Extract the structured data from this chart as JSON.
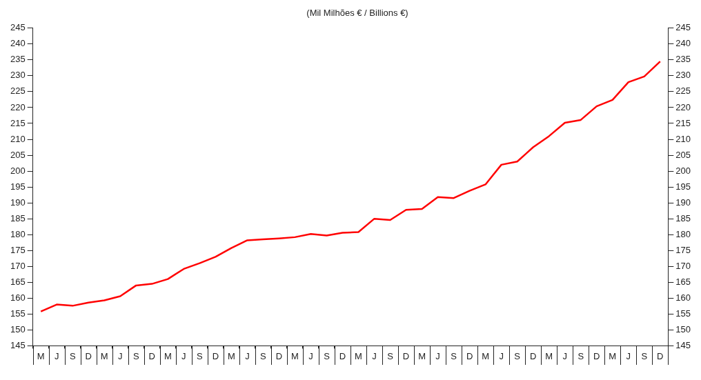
{
  "chart_data": {
    "type": "line",
    "title": "(Mil Milhões € / Billions €)",
    "categories": [
      "M",
      "J",
      "S",
      "D",
      "M",
      "J",
      "S",
      "D",
      "M",
      "J",
      "S",
      "D",
      "M",
      "J",
      "S",
      "D",
      "M",
      "J",
      "S",
      "D",
      "M",
      "J",
      "S",
      "D",
      "M",
      "J",
      "S",
      "D",
      "M",
      "J",
      "S",
      "D",
      "M",
      "J",
      "S",
      "D",
      "M",
      "J",
      "S",
      "D"
    ],
    "series": [
      {
        "color": "#ff0000",
        "values": [
          155.8,
          158.0,
          157.6,
          158.6,
          159.3,
          160.6,
          164.0,
          164.5,
          166.0,
          169.2,
          171.0,
          173.0,
          175.8,
          178.2,
          178.5,
          178.8,
          179.2,
          180.2,
          179.7,
          180.6,
          180.8,
          185.0,
          184.6,
          187.8,
          188.1,
          191.8,
          191.5,
          193.8,
          195.8,
          202.0,
          203.0,
          207.5,
          211.0,
          215.2,
          216.1,
          220.4,
          222.4,
          228.0,
          229.8,
          234.5
        ]
      }
    ],
    "ylim": [
      145,
      245
    ],
    "yticks": [
      145,
      150,
      155,
      160,
      165,
      170,
      175,
      180,
      185,
      190,
      195,
      200,
      205,
      210,
      215,
      220,
      225,
      230,
      235,
      240,
      245
    ],
    "y2lim": [
      145,
      245
    ],
    "y2ticks": [
      145,
      150,
      155,
      160,
      165,
      170,
      175,
      180,
      185,
      190,
      195,
      200,
      205,
      210,
      215,
      220,
      225,
      230,
      235,
      240,
      245
    ],
    "grid": false,
    "legend": false,
    "marker": "none",
    "line_style": "solid"
  }
}
